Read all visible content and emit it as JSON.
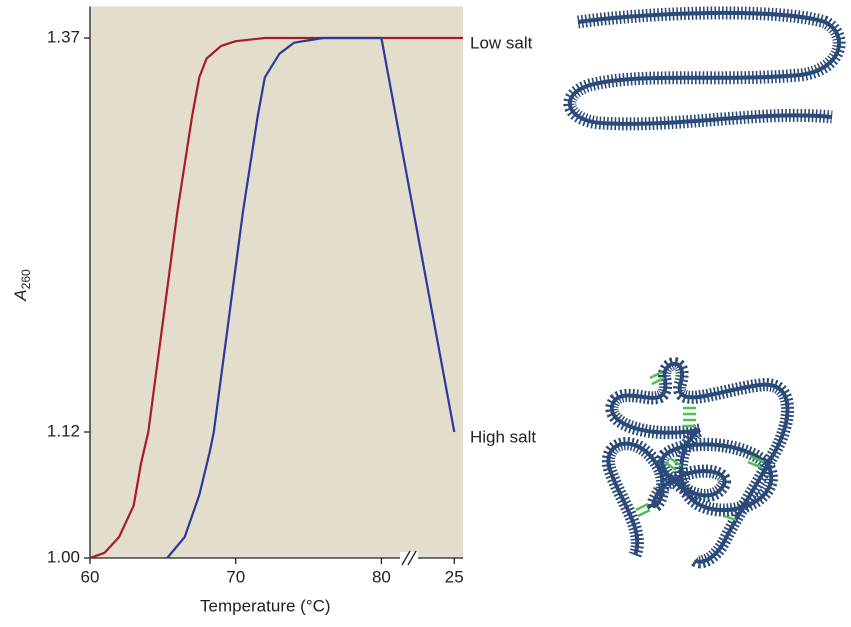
{
  "chart_data": {
    "type": "line",
    "xlabel": "Temperature (°C)",
    "ylabel": "A",
    "ylabel_subscript": "260",
    "xlim": [
      60,
      85.6
    ],
    "xticks": [
      60,
      70,
      80,
      {
        "value": 85,
        "label": "25"
      }
    ],
    "ylim": [
      1.0,
      1.39
    ],
    "yticks": [
      {
        "value": 1.0,
        "label": "1.00"
      },
      1.12,
      1.37
    ],
    "background": "#e3ddcb",
    "series": [
      {
        "name": "Low salt",
        "color": "#a81c24",
        "x": [
          60,
          61,
          62,
          63,
          63.5,
          64,
          65,
          66,
          67,
          67.5,
          68,
          69,
          70,
          72,
          85.6
        ],
        "values": [
          1.0,
          1.005,
          1.02,
          1.05,
          1.09,
          1.12,
          1.19,
          1.26,
          1.32,
          1.345,
          1.357,
          1.365,
          1.368,
          1.37,
          1.37
        ]
      },
      {
        "name": "High salt",
        "color": "#2a3a9a",
        "x": [
          65.3,
          66.5,
          67.5,
          68.2,
          68.5,
          69.5,
          70.5,
          71.5,
          72,
          73,
          74,
          76,
          80,
          85
        ],
        "values": [
          1.0,
          1.02,
          1.06,
          1.1,
          1.12,
          1.19,
          1.26,
          1.32,
          1.345,
          1.36,
          1.367,
          1.37,
          1.37,
          1.12
        ]
      }
    ]
  }
}
